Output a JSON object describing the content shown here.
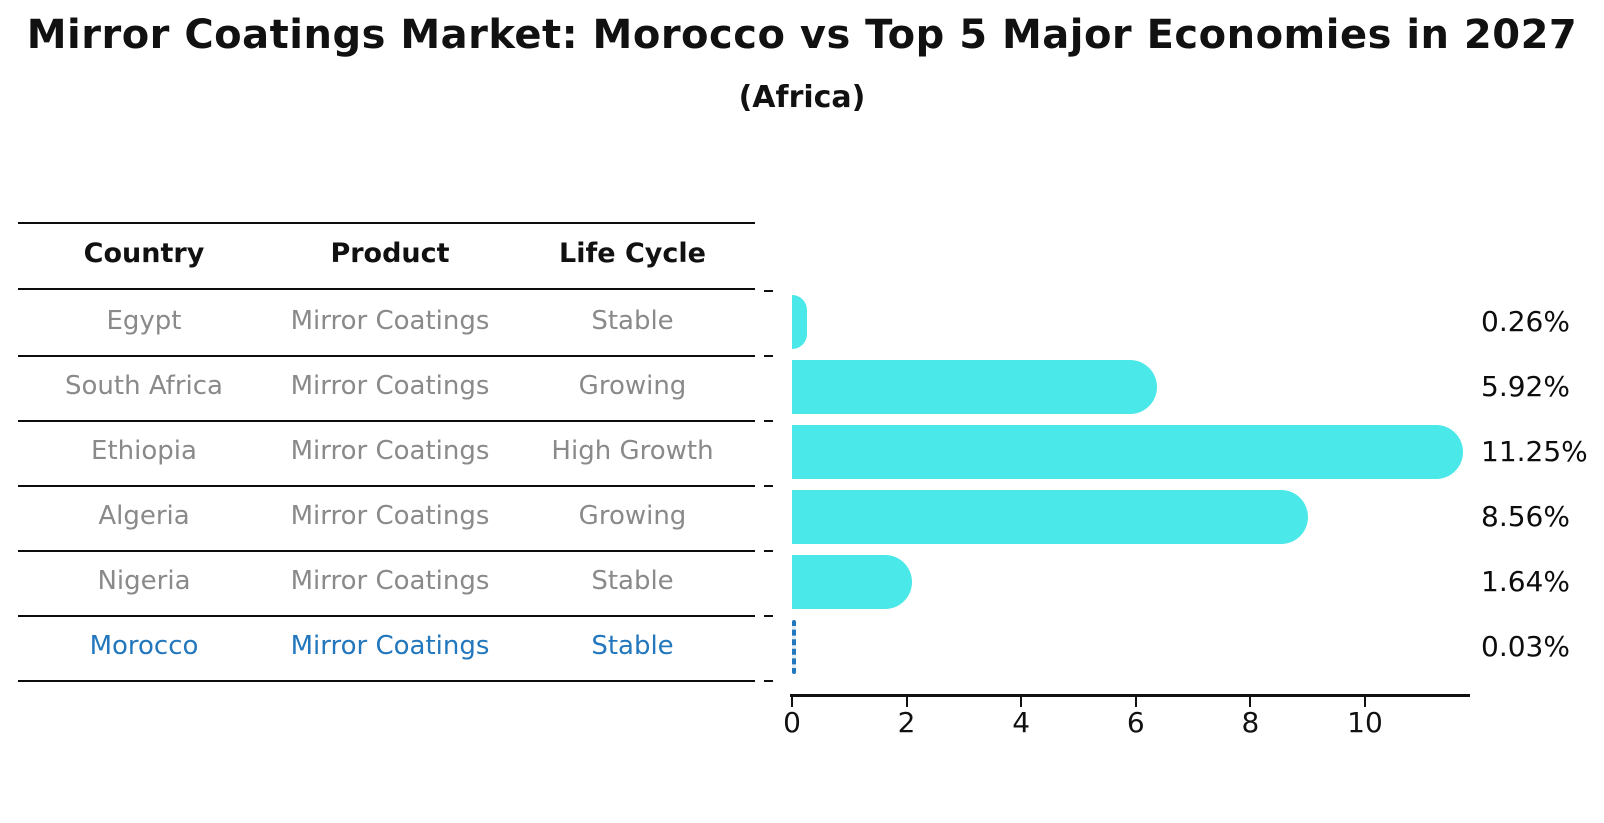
{
  "title": "Mirror Coatings Market: Morocco vs Top 5 Major Economies in 2027",
  "subtitle": "(Africa)",
  "table": {
    "headers": [
      "Country",
      "Product",
      "Life Cycle"
    ],
    "rows": [
      {
        "country": "Egypt",
        "product": "Mirror Coatings",
        "life_cycle": "Stable",
        "highlight": false
      },
      {
        "country": "South Africa",
        "product": "Mirror Coatings",
        "life_cycle": "Growing",
        "highlight": false
      },
      {
        "country": "Ethiopia",
        "product": "Mirror Coatings",
        "life_cycle": "High Growth",
        "highlight": false
      },
      {
        "country": "Algeria",
        "product": "Mirror Coatings",
        "life_cycle": "Growing",
        "highlight": false
      },
      {
        "country": "Nigeria",
        "product": "Mirror Coatings",
        "life_cycle": "Stable",
        "highlight": false
      },
      {
        "country": "Morocco",
        "product": "Mirror Coatings",
        "life_cycle": "Stable",
        "highlight": true
      }
    ]
  },
  "chart_data": {
    "type": "bar",
    "orientation": "horizontal",
    "title": "Mirror Coatings Market: Morocco vs Top 5 Major Economies in 2027",
    "subtitle": "(Africa)",
    "categories": [
      "Egypt",
      "South Africa",
      "Ethiopia",
      "Algeria",
      "Nigeria",
      "Morocco"
    ],
    "values": [
      0.26,
      5.92,
      11.25,
      8.56,
      1.64,
      0.03
    ],
    "value_labels": [
      "0.26%",
      "5.92%",
      "11.25%",
      "8.56%",
      "1.64%",
      "0.03%"
    ],
    "highlight_index": 5,
    "xlim": [
      0,
      11.8
    ],
    "xticks": [
      0,
      2,
      4,
      6,
      8,
      10
    ],
    "grid": false,
    "legend": false,
    "bar_color": "#4ae8e8",
    "highlight_color": "#2277bd"
  },
  "colors": {
    "background": "#ffffff",
    "bar": "#4ae8e8",
    "highlight": "#2277bd",
    "text": "#111111",
    "muted_text": "#8a8a8a",
    "rule": "#0d0d0d"
  }
}
